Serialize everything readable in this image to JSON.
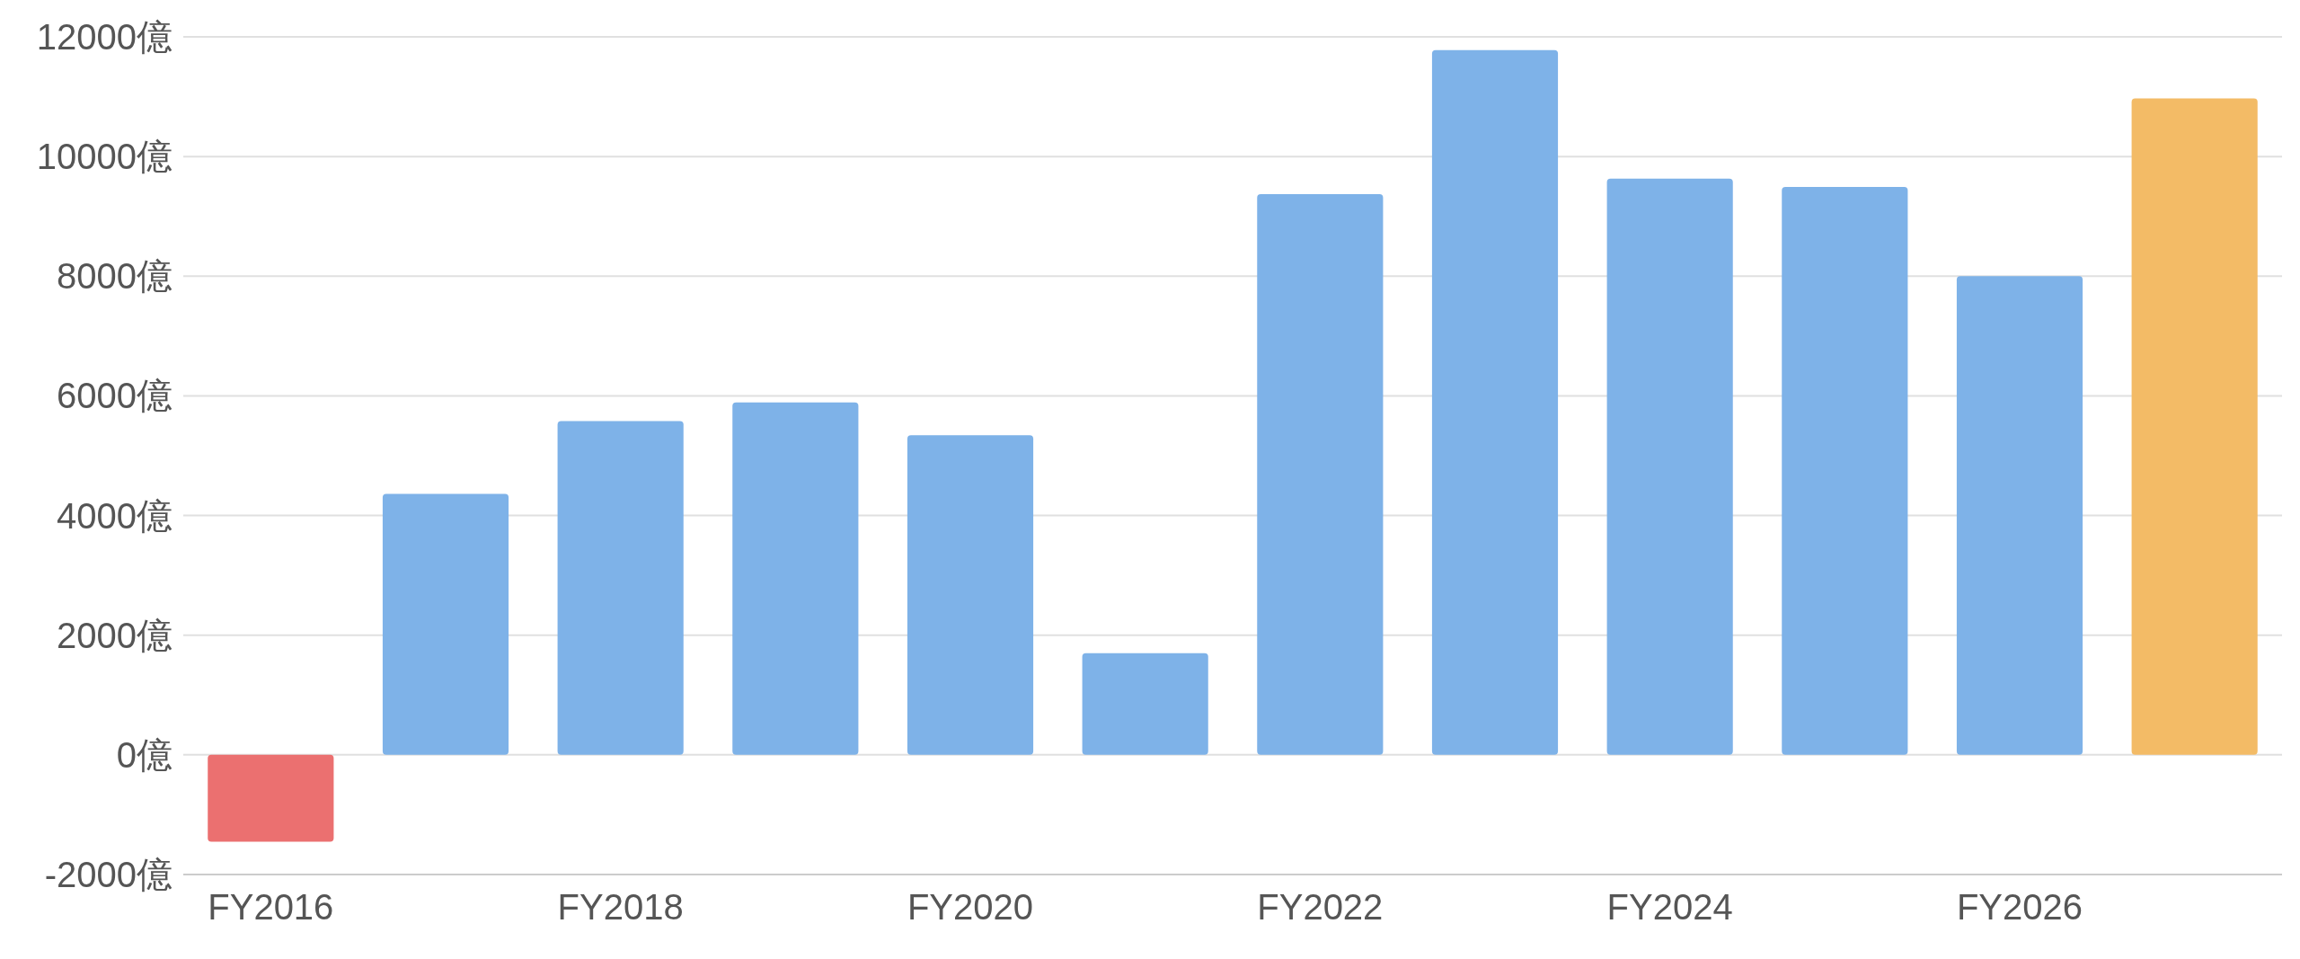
{
  "chart_data": {
    "type": "bar",
    "categories": [
      "FY2016",
      null,
      "FY2018",
      null,
      "FY2020",
      null,
      "FY2022",
      null,
      "FY2024",
      null,
      "FY2026",
      null
    ],
    "values": [
      -1450,
      4360,
      5580,
      5890,
      5340,
      1700,
      9370,
      11780,
      9630,
      9490,
      8000,
      10970
    ],
    "colors": [
      "#eb7070",
      "#7eb2e8",
      "#7eb2e8",
      "#7eb2e8",
      "#7eb2e8",
      "#7eb2e8",
      "#7eb2e8",
      "#7eb2e8",
      "#7eb2e8",
      "#7eb2e8",
      "#7eb2e8",
      "#f3bb66"
    ],
    "ylim": [
      -2000,
      12000
    ],
    "yticks": [
      {
        "value": -2000,
        "label": "-2000億"
      },
      {
        "value": 0,
        "label": "0億"
      },
      {
        "value": 2000,
        "label": "2000億"
      },
      {
        "value": 4000,
        "label": "4000億"
      },
      {
        "value": 6000,
        "label": "6000億"
      },
      {
        "value": 8000,
        "label": "8000億"
      },
      {
        "value": 10000,
        "label": "10000億"
      },
      {
        "value": 12000,
        "label": "12000億"
      }
    ],
    "grid": "y"
  }
}
